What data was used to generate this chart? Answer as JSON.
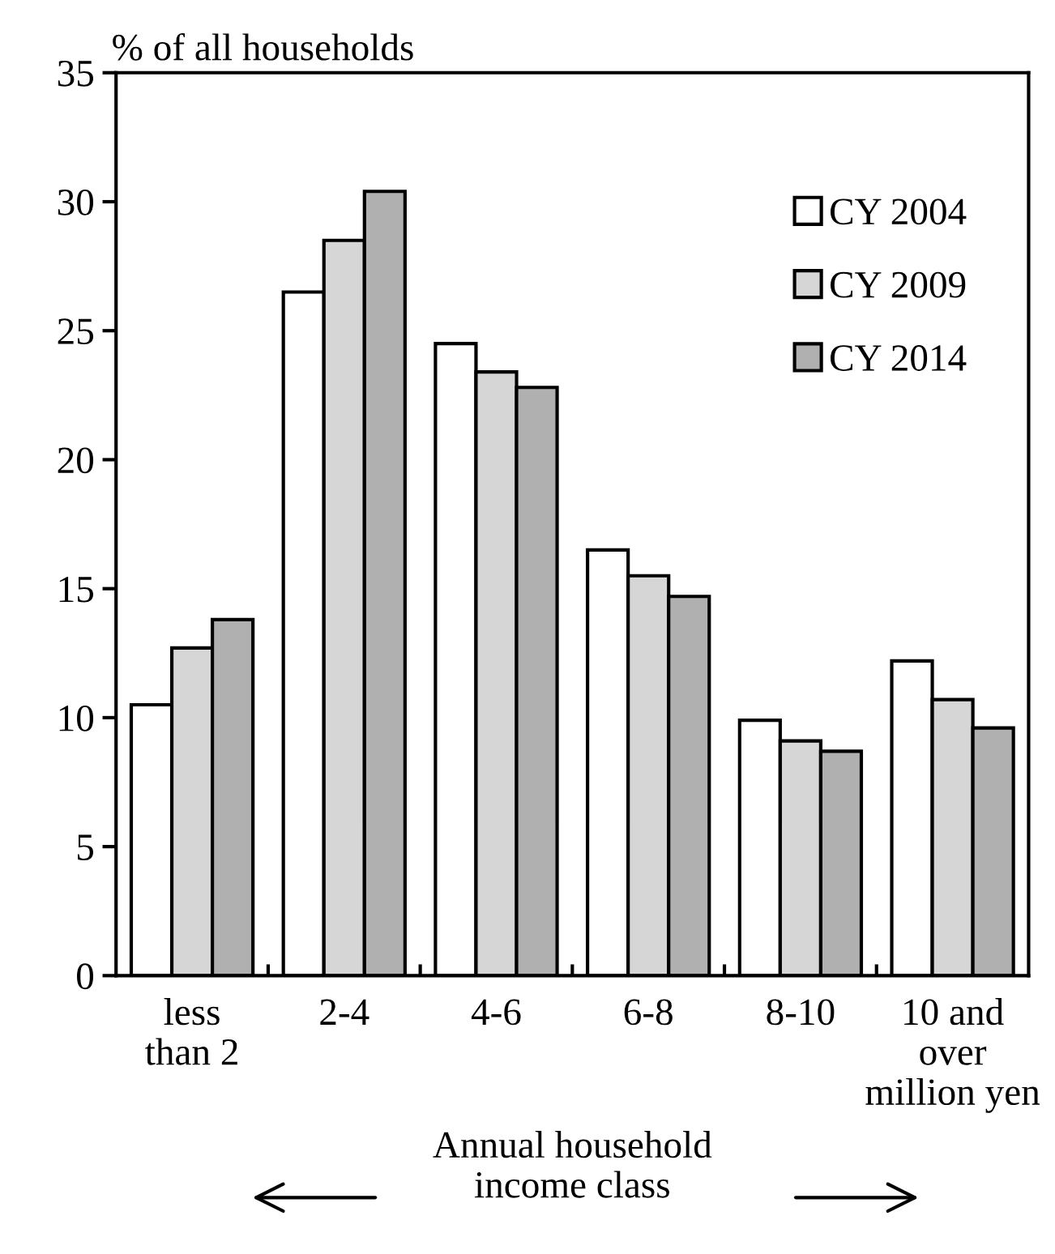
{
  "chart_data": {
    "type": "bar",
    "ylabel": "% of all households",
    "xlabel": "Annual household\nincome class",
    "categories": [
      "less\nthan 2",
      "2-4",
      "4-6",
      "6-8",
      "8-10",
      "10 and\nover\nmillion yen"
    ],
    "series": [
      {
        "name": "CY 2004",
        "color": "#ffffff",
        "values": [
          10.5,
          26.5,
          24.5,
          16.5,
          9.9,
          12.2
        ]
      },
      {
        "name": "CY 2009",
        "color": "#d6d6d6",
        "values": [
          12.7,
          28.5,
          23.4,
          15.5,
          9.1,
          10.7
        ]
      },
      {
        "name": "CY 2014",
        "color": "#b0b0b0",
        "values": [
          13.8,
          30.4,
          22.8,
          14.7,
          8.7,
          9.6
        ]
      }
    ],
    "ylim": [
      0,
      35
    ],
    "yticks": [
      0,
      5,
      10,
      15,
      20,
      25,
      30,
      35
    ],
    "grid": false,
    "legend": "top right"
  }
}
